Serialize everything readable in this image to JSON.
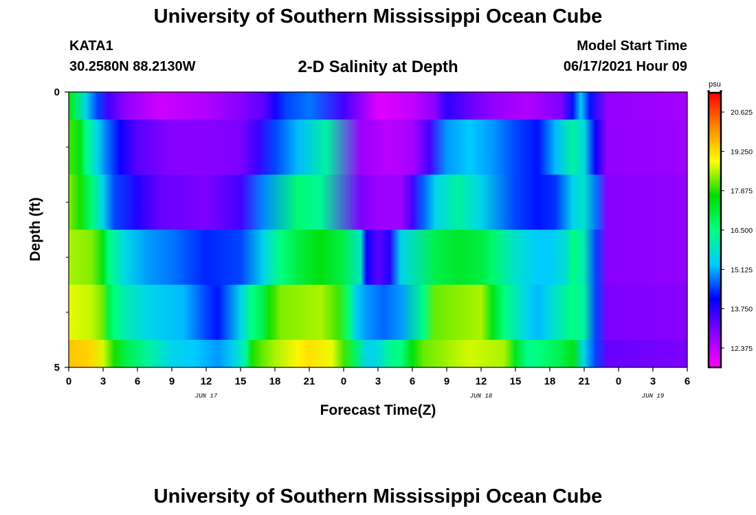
{
  "header": {
    "title": "University of Southern Mississippi Ocean Cube",
    "station": "KATA1",
    "coords": "30.2580N  88.2130W",
    "chart_title": "2-D Salinity at Depth",
    "model_start_label": "Model Start Time",
    "model_start_value": "06/17/2021 Hour 09"
  },
  "footer": {
    "title": "University of Southern Mississippi Ocean Cube"
  },
  "chart_data": {
    "type": "heatmap",
    "title": "2-D Salinity at Depth",
    "xlabel": "Forecast Time(Z)",
    "ylabel": "Depth (ft)",
    "x_unit": "hours from 06/17 00Z",
    "xlim": [
      0,
      54
    ],
    "ylim": [
      5,
      0
    ],
    "x_ticks": [
      0,
      3,
      6,
      9,
      12,
      15,
      18,
      21,
      24,
      27,
      30,
      33,
      36,
      39,
      42,
      45,
      48,
      51,
      54
    ],
    "x_tick_labels": [
      "0",
      "3",
      "6",
      "9",
      "12",
      "15",
      "18",
      "21",
      "0",
      "3",
      "6",
      "9",
      "12",
      "15",
      "18",
      "21",
      "0",
      "3",
      "6"
    ],
    "date_labels": [
      {
        "at": 12,
        "text": "JUN 17"
      },
      {
        "at": 36,
        "text": "JUN 18"
      },
      {
        "at": 51,
        "text": "JUN 19"
      }
    ],
    "y_tick_labels": [
      {
        "at": 0,
        "text": "0"
      },
      {
        "at": 5,
        "text": "5"
      }
    ],
    "y_minor_ticks": [
      1,
      2,
      3,
      4
    ],
    "colorbar": {
      "unit": "psu",
      "min": 11.7,
      "max": 21.3,
      "ticks": [
        "20.625",
        "19.250",
        "17.875",
        "16.500",
        "15.125",
        "13.750",
        "12.375"
      ],
      "colors": [
        "#ff00ff",
        "#8800ff",
        "#0000ff",
        "#00ccff",
        "#00ff80",
        "#00dd00",
        "#ffff00",
        "#ff8800",
        "#ff0000"
      ]
    },
    "layers": [
      {
        "depth_from": 0,
        "depth_to": 0.5,
        "x": [
          0,
          0.5,
          1.5,
          2.5,
          3.5,
          5,
          8,
          12,
          15,
          17,
          18,
          19,
          21,
          24,
          27,
          30,
          32,
          33,
          35,
          37,
          40,
          43,
          44,
          44.7,
          45.5,
          47,
          54
        ],
        "values": [
          17.5,
          17.0,
          15.5,
          14.5,
          13.5,
          12.8,
          12.2,
          12.5,
          12.9,
          13.3,
          13.9,
          14.5,
          14.8,
          13.5,
          12.0,
          12.3,
          12.9,
          13.7,
          13.2,
          12.8,
          12.5,
          13.0,
          14.2,
          15.3,
          14.2,
          12.8,
          12.6
        ]
      },
      {
        "depth_from": 0.5,
        "depth_to": 1.5,
        "x": [
          0,
          1,
          1.5,
          2.5,
          3.5,
          4.5,
          6,
          9,
          12,
          15,
          16.5,
          18,
          20,
          22.5,
          25.5,
          28,
          30,
          31.5,
          33,
          35,
          37,
          39,
          41,
          42.5,
          44,
          45,
          46,
          47,
          54
        ],
        "values": [
          18.0,
          17.5,
          16.5,
          15.5,
          14.7,
          14.0,
          13.3,
          12.9,
          12.9,
          13.0,
          13.6,
          14.5,
          15.2,
          16.2,
          12.7,
          12.4,
          12.6,
          13.5,
          15.0,
          15.3,
          15.0,
          14.5,
          14.2,
          15.2,
          16.2,
          15.6,
          14.0,
          12.8,
          12.7
        ]
      },
      {
        "depth_from": 1.5,
        "depth_to": 2.5,
        "x": [
          0,
          1,
          2,
          3,
          4,
          6,
          8,
          12,
          15,
          17,
          20,
          22,
          25.5,
          27,
          29,
          30,
          31,
          32,
          34,
          36,
          39,
          41,
          42.5,
          44,
          45,
          46,
          47,
          54
        ],
        "values": [
          18.3,
          17.8,
          16.6,
          15.5,
          14.5,
          13.8,
          13.2,
          13.0,
          13.5,
          14.9,
          16.6,
          16.3,
          13.0,
          12.7,
          12.7,
          13.5,
          14.7,
          15.5,
          16.2,
          15.5,
          14.5,
          14.2,
          14.4,
          15.5,
          15.8,
          14.8,
          12.9,
          12.8
        ]
      },
      {
        "depth_from": 2.5,
        "depth_to": 3.5,
        "x": [
          0,
          2,
          3,
          3.5,
          5,
          7,
          9,
          12,
          15,
          17,
          18.5,
          20,
          22,
          24,
          25.5,
          26,
          27,
          28,
          29,
          32,
          34,
          36,
          37,
          39,
          41,
          42,
          43.5,
          44,
          45,
          46,
          47,
          54
        ],
        "values": [
          18.5,
          18.3,
          17.5,
          16.5,
          15.5,
          15.0,
          14.8,
          14.3,
          14.5,
          15.5,
          16.5,
          17.1,
          17.6,
          17.0,
          15.8,
          14.0,
          13.3,
          13.8,
          15.5,
          17.0,
          17.3,
          17.1,
          16.7,
          15.8,
          15.3,
          15.3,
          15.8,
          16.5,
          16.0,
          14.5,
          12.9,
          12.8
        ]
      },
      {
        "depth_from": 3.5,
        "depth_to": 4.5,
        "x": [
          0,
          2,
          3,
          3.5,
          4,
          5,
          7,
          10,
          12,
          13,
          15,
          16,
          17,
          17.5,
          18,
          18.5,
          22,
          23.5,
          24.5,
          25,
          26,
          27.5,
          29,
          31,
          32,
          36,
          37,
          38,
          40,
          41,
          42,
          44,
          45,
          46,
          47,
          54
        ],
        "values": [
          18.8,
          18.6,
          18.2,
          17.0,
          16.5,
          16.0,
          15.5,
          15.2,
          14.5,
          14.2,
          15.5,
          16.5,
          17.0,
          17.8,
          18.0,
          18.3,
          18.5,
          18.0,
          16.5,
          15.5,
          15.0,
          14.7,
          15.0,
          16.5,
          18.2,
          18.5,
          17.5,
          16.5,
          15.5,
          15.2,
          15.6,
          16.5,
          16.2,
          14.5,
          13.0,
          12.9
        ]
      },
      {
        "depth_from": 4.5,
        "depth_to": 5,
        "x": [
          0,
          2,
          3,
          4,
          5,
          7,
          9,
          11,
          13,
          14.5,
          15.5,
          16,
          17,
          18,
          20,
          21,
          23,
          24,
          25,
          26,
          27,
          28,
          29,
          30,
          31,
          35,
          38,
          39,
          40,
          41,
          43,
          44,
          45,
          46,
          47,
          54
        ],
        "values": [
          19.5,
          19.3,
          18.7,
          17.8,
          17.0,
          16.2,
          15.5,
          15.3,
          15.0,
          15.5,
          16.3,
          17.8,
          18.2,
          18.5,
          19.0,
          19.2,
          18.8,
          18.0,
          16.8,
          15.5,
          15.6,
          16.3,
          16.5,
          17.6,
          18.2,
          18.7,
          18.5,
          17.4,
          16.4,
          16.5,
          17.0,
          17.5,
          15.5,
          14.5,
          13.2,
          13.0
        ]
      }
    ]
  }
}
